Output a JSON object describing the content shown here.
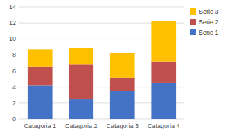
{
  "chart_data": {
    "type": "bar",
    "stacked": true,
    "categories": [
      "Catagoria 1",
      "Catagoria 2",
      "Catagoria 3",
      "Catagoria 4"
    ],
    "series": [
      {
        "name": "Serie 1",
        "color": "#4472C4",
        "values": [
          4.2,
          2.5,
          3.5,
          4.5
        ]
      },
      {
        "name": "Serie 2",
        "color": "#C0504D",
        "values": [
          2.3,
          4.3,
          1.7,
          2.7
        ]
      },
      {
        "name": "Serie 3",
        "color": "#FFC000",
        "values": [
          2.2,
          2.1,
          3.1,
          5.0
        ]
      }
    ],
    "ylim": [
      0,
      14
    ],
    "yticks": [
      0,
      2,
      4,
      6,
      8,
      10,
      12,
      14
    ],
    "grid": true,
    "legend": "right"
  }
}
